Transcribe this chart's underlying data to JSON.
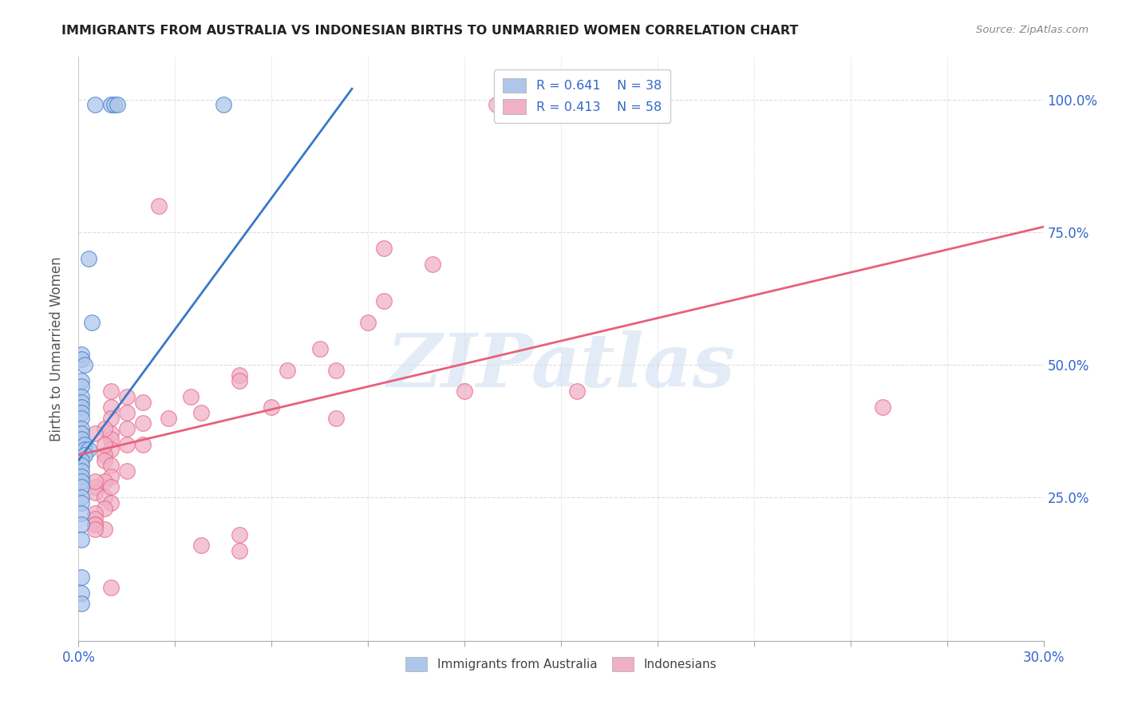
{
  "title": "IMMIGRANTS FROM AUSTRALIA VS INDONESIAN BIRTHS TO UNMARRIED WOMEN CORRELATION CHART",
  "source": "Source: ZipAtlas.com",
  "ylabel": "Births to Unmarried Women",
  "legend_label_blue": "Immigrants from Australia",
  "legend_label_pink": "Indonesians",
  "R_blue": "0.641",
  "N_blue": "38",
  "R_pink": "0.413",
  "N_pink": "58",
  "blue_color": "#aec6ea",
  "pink_color": "#f0b0c8",
  "blue_line_color": "#3a78c9",
  "pink_line_color": "#e8607a",
  "watermark": "ZIPatlas",
  "xlim": [
    0.0,
    0.3
  ],
  "ylim": [
    -0.02,
    1.08
  ],
  "ytick_values": [
    0.25,
    0.5,
    0.75,
    1.0
  ],
  "ytick_labels": [
    "25.0%",
    "50.0%",
    "75.0%",
    "100.0%"
  ],
  "blue_scatter_x": [
    0.005,
    0.01,
    0.011,
    0.012,
    0.003,
    0.004,
    0.001,
    0.001,
    0.002,
    0.001,
    0.001,
    0.001,
    0.001,
    0.001,
    0.001,
    0.001,
    0.001,
    0.001,
    0.001,
    0.002,
    0.002,
    0.003,
    0.002,
    0.001,
    0.001,
    0.001,
    0.001,
    0.001,
    0.001,
    0.001,
    0.001,
    0.001,
    0.001,
    0.001,
    0.001,
    0.045,
    0.001,
    0.001
  ],
  "blue_scatter_y": [
    0.99,
    0.99,
    0.99,
    0.99,
    0.7,
    0.58,
    0.52,
    0.51,
    0.5,
    0.47,
    0.46,
    0.44,
    0.43,
    0.42,
    0.41,
    0.4,
    0.38,
    0.37,
    0.36,
    0.35,
    0.34,
    0.34,
    0.33,
    0.32,
    0.31,
    0.3,
    0.29,
    0.28,
    0.27,
    0.25,
    0.24,
    0.22,
    0.2,
    0.17,
    0.1,
    0.99,
    0.07,
    0.05
  ],
  "pink_scatter_x": [
    0.25,
    0.025,
    0.095,
    0.11,
    0.09,
    0.075,
    0.08,
    0.05,
    0.05,
    0.06,
    0.038,
    0.028,
    0.02,
    0.015,
    0.01,
    0.01,
    0.015,
    0.02,
    0.01,
    0.008,
    0.008,
    0.01,
    0.015,
    0.01,
    0.008,
    0.005,
    0.005,
    0.008,
    0.01,
    0.008,
    0.005,
    0.005,
    0.005,
    0.008,
    0.095,
    0.065,
    0.01,
    0.015,
    0.035,
    0.02,
    0.01,
    0.015,
    0.01,
    0.008,
    0.005,
    0.008,
    0.005,
    0.01,
    0.005,
    0.005,
    0.01,
    0.05,
    0.038,
    0.05,
    0.12,
    0.08,
    0.13,
    0.155
  ],
  "pink_scatter_y": [
    0.42,
    0.8,
    0.72,
    0.69,
    0.58,
    0.53,
    0.49,
    0.48,
    0.47,
    0.42,
    0.41,
    0.4,
    0.39,
    0.38,
    0.37,
    0.36,
    0.35,
    0.35,
    0.34,
    0.33,
    0.32,
    0.31,
    0.3,
    0.29,
    0.28,
    0.27,
    0.26,
    0.25,
    0.24,
    0.23,
    0.22,
    0.21,
    0.2,
    0.19,
    0.62,
    0.49,
    0.45,
    0.44,
    0.44,
    0.43,
    0.42,
    0.41,
    0.4,
    0.38,
    0.37,
    0.35,
    0.28,
    0.27,
    0.2,
    0.19,
    0.08,
    0.18,
    0.16,
    0.15,
    0.45,
    0.4,
    0.99,
    0.45
  ],
  "blue_line_x": [
    0.0,
    0.085
  ],
  "blue_line_y": [
    0.32,
    1.02
  ],
  "pink_line_x": [
    0.0,
    0.3
  ],
  "pink_line_y": [
    0.33,
    0.76
  ]
}
